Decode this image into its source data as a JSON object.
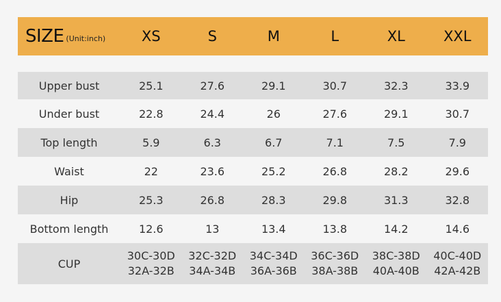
{
  "header": {
    "size_label": "SIZE",
    "unit_label": "(Unit:inch)",
    "sizes": [
      "XS",
      "S",
      "M",
      "L",
      "XL",
      "XXL"
    ]
  },
  "rows": [
    {
      "label": "Upper bust",
      "values": [
        "25.1",
        "27.6",
        "29.1",
        "30.7",
        "32.3",
        "33.9"
      ]
    },
    {
      "label": "Under bust",
      "values": [
        "22.8",
        "24.4",
        "26",
        "27.6",
        "29.1",
        "30.7"
      ]
    },
    {
      "label": "Top length",
      "values": [
        "5.9",
        "6.3",
        "6.7",
        "7.1",
        "7.5",
        "7.9"
      ]
    },
    {
      "label": "Waist",
      "values": [
        "22",
        "23.6",
        "25.2",
        "26.8",
        "28.2",
        "29.6"
      ]
    },
    {
      "label": "Hip",
      "values": [
        "25.3",
        "26.8",
        "28.3",
        "29.8",
        "31.3",
        "32.8"
      ]
    },
    {
      "label": "Bottom length",
      "values": [
        "12.6",
        "13",
        "13.4",
        "13.8",
        "14.2",
        "14.6"
      ]
    }
  ],
  "cup": {
    "label": "CUP",
    "line1": [
      "30C-30D",
      "32C-32D",
      "34C-34D",
      "36C-36D",
      "38C-38D",
      "40C-40D"
    ],
    "line2": [
      "32A-32B",
      "34A-34B",
      "36A-36B",
      "38A-38B",
      "40A-40B",
      "42A-42B"
    ]
  },
  "colors": {
    "header_bg": "#eeae4b",
    "row_shade": "#dddddd",
    "background": "#f5f5f5"
  }
}
